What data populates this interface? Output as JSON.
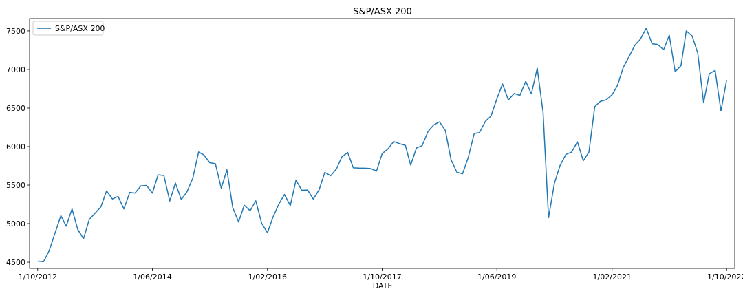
{
  "chart_data": {
    "type": "line",
    "title": "S&P/ASX 200",
    "xlabel": "DATE",
    "ylabel": "",
    "x_tick_labels": [
      "1/10/2012",
      "1/06/2014",
      "1/02/2016",
      "1/10/2017",
      "1/06/2019",
      "1/02/2021",
      "1/10/2022"
    ],
    "y_ticks": [
      4500,
      5000,
      5500,
      6000,
      6500,
      7000,
      7500
    ],
    "ylim": [
      4420,
      7660
    ],
    "xlim": [
      "2012-08-19",
      "2022-11-13"
    ],
    "grid": false,
    "legend_position": "top-left",
    "series": [
      {
        "name": "S&P/ASX 200",
        "color": "#1f77b4",
        "points": [
          [
            "2012-10-01",
            4515
          ],
          [
            "2012-11-01",
            4506
          ],
          [
            "2012-12-01",
            4649
          ],
          [
            "2013-01-01",
            4879
          ],
          [
            "2013-02-01",
            5104
          ],
          [
            "2013-03-01",
            4967
          ],
          [
            "2013-04-01",
            5191
          ],
          [
            "2013-05-01",
            4927
          ],
          [
            "2013-06-01",
            4803
          ],
          [
            "2013-07-01",
            5052
          ],
          [
            "2013-08-01",
            5135
          ],
          [
            "2013-09-01",
            5218
          ],
          [
            "2013-10-01",
            5425
          ],
          [
            "2013-11-01",
            5320
          ],
          [
            "2013-12-01",
            5353
          ],
          [
            "2014-01-01",
            5191
          ],
          [
            "2014-02-01",
            5405
          ],
          [
            "2014-03-01",
            5396
          ],
          [
            "2014-04-01",
            5490
          ],
          [
            "2014-05-01",
            5495
          ],
          [
            "2014-06-01",
            5396
          ],
          [
            "2014-07-01",
            5633
          ],
          [
            "2014-08-01",
            5625
          ],
          [
            "2014-09-01",
            5293
          ],
          [
            "2014-10-01",
            5527
          ],
          [
            "2014-11-01",
            5313
          ],
          [
            "2014-12-01",
            5411
          ],
          [
            "2015-01-01",
            5589
          ],
          [
            "2015-02-01",
            5929
          ],
          [
            "2015-03-01",
            5891
          ],
          [
            "2015-04-01",
            5790
          ],
          [
            "2015-05-01",
            5777
          ],
          [
            "2015-06-01",
            5460
          ],
          [
            "2015-07-01",
            5699
          ],
          [
            "2015-08-01",
            5207
          ],
          [
            "2015-09-01",
            5022
          ],
          [
            "2015-10-01",
            5239
          ],
          [
            "2015-11-01",
            5167
          ],
          [
            "2015-12-01",
            5296
          ],
          [
            "2016-01-01",
            5006
          ],
          [
            "2016-02-01",
            4882
          ],
          [
            "2016-03-01",
            5083
          ],
          [
            "2016-04-01",
            5252
          ],
          [
            "2016-05-01",
            5378
          ],
          [
            "2016-06-01",
            5233
          ],
          [
            "2016-07-01",
            5563
          ],
          [
            "2016-08-01",
            5433
          ],
          [
            "2016-09-01",
            5436
          ],
          [
            "2016-10-01",
            5318
          ],
          [
            "2016-11-01",
            5441
          ],
          [
            "2016-12-01",
            5665
          ],
          [
            "2017-01-01",
            5621
          ],
          [
            "2017-02-01",
            5712
          ],
          [
            "2017-03-01",
            5864
          ],
          [
            "2017-04-01",
            5924
          ],
          [
            "2017-05-01",
            5724
          ],
          [
            "2017-06-01",
            5721
          ],
          [
            "2017-07-01",
            5720
          ],
          [
            "2017-08-01",
            5715
          ],
          [
            "2017-09-01",
            5682
          ],
          [
            "2017-10-01",
            5909
          ],
          [
            "2017-11-01",
            5970
          ],
          [
            "2017-12-01",
            6065
          ],
          [
            "2018-01-01",
            6037
          ],
          [
            "2018-02-01",
            6016
          ],
          [
            "2018-03-01",
            5759
          ],
          [
            "2018-04-01",
            5983
          ],
          [
            "2018-05-01",
            6012
          ],
          [
            "2018-06-01",
            6195
          ],
          [
            "2018-07-01",
            6280
          ],
          [
            "2018-08-01",
            6320
          ],
          [
            "2018-09-01",
            6208
          ],
          [
            "2018-10-01",
            5830
          ],
          [
            "2018-11-01",
            5667
          ],
          [
            "2018-12-01",
            5646
          ],
          [
            "2019-01-01",
            5865
          ],
          [
            "2019-02-01",
            6169
          ],
          [
            "2019-03-01",
            6181
          ],
          [
            "2019-04-01",
            6326
          ],
          [
            "2019-05-01",
            6397
          ],
          [
            "2019-06-01",
            6619
          ],
          [
            "2019-07-01",
            6813
          ],
          [
            "2019-08-01",
            6604
          ],
          [
            "2019-09-01",
            6689
          ],
          [
            "2019-10-01",
            6663
          ],
          [
            "2019-11-01",
            6846
          ],
          [
            "2019-12-01",
            6684
          ],
          [
            "2020-01-01",
            7017
          ],
          [
            "2020-02-01",
            6441
          ],
          [
            "2020-03-01",
            5077
          ],
          [
            "2020-04-01",
            5523
          ],
          [
            "2020-05-01",
            5755
          ],
          [
            "2020-06-01",
            5898
          ],
          [
            "2020-07-01",
            5928
          ],
          [
            "2020-08-01",
            6061
          ],
          [
            "2020-09-01",
            5816
          ],
          [
            "2020-10-01",
            5928
          ],
          [
            "2020-11-01",
            6518
          ],
          [
            "2020-12-01",
            6587
          ],
          [
            "2021-01-01",
            6607
          ],
          [
            "2021-02-01",
            6673
          ],
          [
            "2021-03-01",
            6791
          ],
          [
            "2021-04-01",
            7025
          ],
          [
            "2021-05-01",
            7162
          ],
          [
            "2021-06-01",
            7313
          ],
          [
            "2021-07-01",
            7393
          ],
          [
            "2021-08-01",
            7535
          ],
          [
            "2021-09-01",
            7332
          ],
          [
            "2021-10-01",
            7324
          ],
          [
            "2021-11-01",
            7256
          ],
          [
            "2021-12-01",
            7445
          ],
          [
            "2022-01-01",
            6971
          ],
          [
            "2022-02-01",
            7049
          ],
          [
            "2022-03-01",
            7500
          ],
          [
            "2022-04-01",
            7435
          ],
          [
            "2022-05-01",
            7212
          ],
          [
            "2022-06-01",
            6568
          ],
          [
            "2022-07-01",
            6945
          ],
          [
            "2022-08-01",
            6987
          ],
          [
            "2022-09-01",
            6462
          ],
          [
            "2022-10-01",
            6864
          ]
        ]
      }
    ]
  }
}
